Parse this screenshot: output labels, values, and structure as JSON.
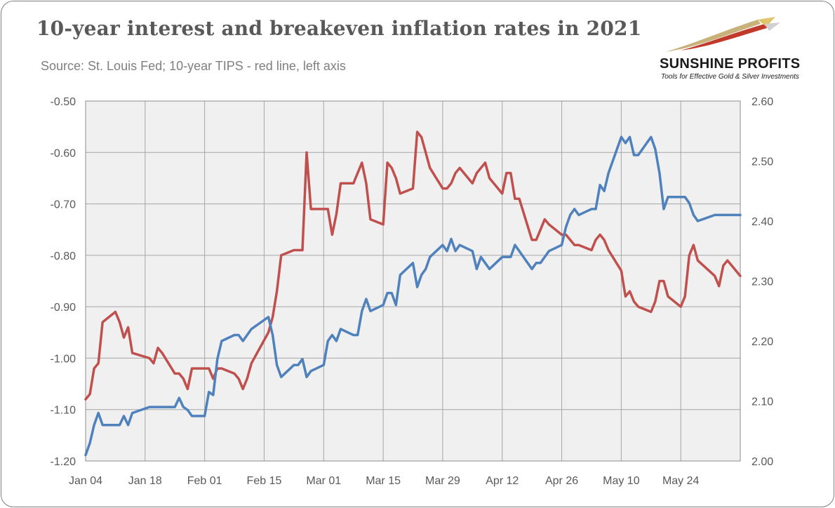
{
  "title": "10-year interest and breakeven inflation rates in 2021",
  "subtitle": "Source: St. Louis Fed; 10-year TIPS - red line, left axis",
  "logo": {
    "name": "SUNSHINE PROFITS",
    "tagline": "Tools for Effective Gold & Silver Investments"
  },
  "colors": {
    "tips": "#c0504d",
    "breakeven": "#4f81bd",
    "grid": "#a6a6a6",
    "plot_bg": "#f0f0f0"
  },
  "chart_data": {
    "type": "line",
    "x_tick_labels": [
      "Jan 04",
      "Jan 18",
      "Feb 01",
      "Feb 15",
      "Mar 01",
      "Mar 15",
      "Mar 29",
      "Apr 12",
      "Apr 26",
      "May 10",
      "May 24"
    ],
    "y_left": {
      "range": [
        -1.2,
        -0.5
      ],
      "ticks": [
        "-0.50",
        "-0.60",
        "-0.70",
        "-0.80",
        "-0.90",
        "-1.00",
        "-1.10",
        "-1.20"
      ]
    },
    "y_right": {
      "range": [
        2.0,
        2.6
      ],
      "ticks": [
        "2.60",
        "2.50",
        "2.40",
        "2.30",
        "2.20",
        "2.10",
        "2.00"
      ]
    },
    "grid": true,
    "series": [
      {
        "axis": "left",
        "color": "#c0504d",
        "points": [
          [
            "2021-01-04",
            -1.08
          ],
          [
            "2021-01-05",
            -1.07
          ],
          [
            "2021-01-06",
            -1.02
          ],
          [
            "2021-01-07",
            -1.01
          ],
          [
            "2021-01-08",
            -0.93
          ],
          [
            "2021-01-11",
            -0.91
          ],
          [
            "2021-01-12",
            -0.93
          ],
          [
            "2021-01-13",
            -0.96
          ],
          [
            "2021-01-14",
            -0.94
          ],
          [
            "2021-01-15",
            -0.99
          ],
          [
            "2021-01-19",
            -1.0
          ],
          [
            "2021-01-20",
            -1.01
          ],
          [
            "2021-01-21",
            -0.98
          ],
          [
            "2021-01-22",
            -0.99
          ],
          [
            "2021-01-25",
            -1.03
          ],
          [
            "2021-01-26",
            -1.03
          ],
          [
            "2021-01-27",
            -1.04
          ],
          [
            "2021-01-28",
            -1.06
          ],
          [
            "2021-01-29",
            -1.02
          ],
          [
            "2021-02-01",
            -1.02
          ],
          [
            "2021-02-02",
            -1.02
          ],
          [
            "2021-02-03",
            -1.04
          ],
          [
            "2021-02-04",
            -1.02
          ],
          [
            "2021-02-05",
            -1.02
          ],
          [
            "2021-02-08",
            -1.03
          ],
          [
            "2021-02-09",
            -1.04
          ],
          [
            "2021-02-10",
            -1.06
          ],
          [
            "2021-02-11",
            -1.04
          ],
          [
            "2021-02-12",
            -1.01
          ],
          [
            "2021-02-16",
            -0.95
          ],
          [
            "2021-02-17",
            -0.92
          ],
          [
            "2021-02-18",
            -0.87
          ],
          [
            "2021-02-19",
            -0.8
          ],
          [
            "2021-02-22",
            -0.79
          ],
          [
            "2021-02-23",
            -0.79
          ],
          [
            "2021-02-24",
            -0.79
          ],
          [
            "2021-02-25",
            -0.6
          ],
          [
            "2021-02-26",
            -0.71
          ],
          [
            "2021-03-01",
            -0.71
          ],
          [
            "2021-03-02",
            -0.71
          ],
          [
            "2021-03-03",
            -0.76
          ],
          [
            "2021-03-04",
            -0.72
          ],
          [
            "2021-03-05",
            -0.66
          ],
          [
            "2021-03-08",
            -0.66
          ],
          [
            "2021-03-09",
            -0.64
          ],
          [
            "2021-03-10",
            -0.62
          ],
          [
            "2021-03-11",
            -0.66
          ],
          [
            "2021-03-12",
            -0.73
          ],
          [
            "2021-03-15",
            -0.74
          ],
          [
            "2021-03-16",
            -0.62
          ],
          [
            "2021-03-17",
            -0.63
          ],
          [
            "2021-03-18",
            -0.65
          ],
          [
            "2021-03-19",
            -0.68
          ],
          [
            "2021-03-22",
            -0.67
          ],
          [
            "2021-03-23",
            -0.56
          ],
          [
            "2021-03-24",
            -0.57
          ],
          [
            "2021-03-25",
            -0.6
          ],
          [
            "2021-03-26",
            -0.63
          ],
          [
            "2021-03-29",
            -0.67
          ],
          [
            "2021-03-30",
            -0.67
          ],
          [
            "2021-03-31",
            -0.66
          ],
          [
            "2021-04-01",
            -0.64
          ],
          [
            "2021-04-02",
            -0.63
          ],
          [
            "2021-04-05",
            -0.66
          ],
          [
            "2021-04-06",
            -0.64
          ],
          [
            "2021-04-07",
            -0.63
          ],
          [
            "2021-04-08",
            -0.62
          ],
          [
            "2021-04-09",
            -0.65
          ],
          [
            "2021-04-12",
            -0.68
          ],
          [
            "2021-04-13",
            -0.64
          ],
          [
            "2021-04-14",
            -0.64
          ],
          [
            "2021-04-15",
            -0.69
          ],
          [
            "2021-04-16",
            -0.69
          ],
          [
            "2021-04-19",
            -0.77
          ],
          [
            "2021-04-20",
            -0.77
          ],
          [
            "2021-04-21",
            -0.75
          ],
          [
            "2021-04-22",
            -0.73
          ],
          [
            "2021-04-23",
            -0.74
          ],
          [
            "2021-04-26",
            -0.76
          ],
          [
            "2021-04-27",
            -0.76
          ],
          [
            "2021-04-28",
            -0.77
          ],
          [
            "2021-04-29",
            -0.78
          ],
          [
            "2021-04-30",
            -0.78
          ],
          [
            "2021-05-03",
            -0.79
          ],
          [
            "2021-05-04",
            -0.77
          ],
          [
            "2021-05-05",
            -0.76
          ],
          [
            "2021-05-06",
            -0.77
          ],
          [
            "2021-05-07",
            -0.79
          ],
          [
            "2021-05-10",
            -0.83
          ],
          [
            "2021-05-11",
            -0.88
          ],
          [
            "2021-05-12",
            -0.87
          ],
          [
            "2021-05-13",
            -0.89
          ],
          [
            "2021-05-14",
            -0.9
          ],
          [
            "2021-05-17",
            -0.91
          ],
          [
            "2021-05-18",
            -0.89
          ],
          [
            "2021-05-19",
            -0.85
          ],
          [
            "2021-05-20",
            -0.85
          ],
          [
            "2021-05-21",
            -0.88
          ],
          [
            "2021-05-24",
            -0.9
          ],
          [
            "2021-05-25",
            -0.88
          ],
          [
            "2021-05-26",
            -0.8
          ],
          [
            "2021-05-27",
            -0.78
          ],
          [
            "2021-05-28",
            -0.81
          ],
          [
            "2021-06-01",
            -0.84
          ],
          [
            "2021-06-02",
            -0.86
          ],
          [
            "2021-06-03",
            -0.82
          ],
          [
            "2021-06-04",
            -0.81
          ],
          [
            "2021-06-07",
            -0.84
          ]
        ]
      },
      {
        "axis": "right",
        "color": "#4f81bd",
        "points": [
          [
            "2021-01-04",
            2.01
          ],
          [
            "2021-01-05",
            2.03
          ],
          [
            "2021-01-06",
            2.06
          ],
          [
            "2021-01-07",
            2.08
          ],
          [
            "2021-01-08",
            2.06
          ],
          [
            "2021-01-11",
            2.06
          ],
          [
            "2021-01-12",
            2.06
          ],
          [
            "2021-01-13",
            2.075
          ],
          [
            "2021-01-14",
            2.06
          ],
          [
            "2021-01-15",
            2.08
          ],
          [
            "2021-01-19",
            2.09
          ],
          [
            "2021-01-20",
            2.09
          ],
          [
            "2021-01-21",
            2.09
          ],
          [
            "2021-01-22",
            2.09
          ],
          [
            "2021-01-25",
            2.09
          ],
          [
            "2021-01-26",
            2.105
          ],
          [
            "2021-01-27",
            2.09
          ],
          [
            "2021-01-28",
            2.085
          ],
          [
            "2021-01-29",
            2.075
          ],
          [
            "2021-02-01",
            2.075
          ],
          [
            "2021-02-02",
            2.115
          ],
          [
            "2021-02-03",
            2.11
          ],
          [
            "2021-02-04",
            2.17
          ],
          [
            "2021-02-05",
            2.2
          ],
          [
            "2021-02-08",
            2.21
          ],
          [
            "2021-02-09",
            2.21
          ],
          [
            "2021-02-10",
            2.2
          ],
          [
            "2021-02-11",
            2.21
          ],
          [
            "2021-02-12",
            2.22
          ],
          [
            "2021-02-16",
            2.24
          ],
          [
            "2021-02-17",
            2.21
          ],
          [
            "2021-02-18",
            2.16
          ],
          [
            "2021-02-19",
            2.14
          ],
          [
            "2021-02-22",
            2.16
          ],
          [
            "2021-02-23",
            2.16
          ],
          [
            "2021-02-24",
            2.17
          ],
          [
            "2021-02-25",
            2.14
          ],
          [
            "2021-02-26",
            2.15
          ],
          [
            "2021-03-01",
            2.16
          ],
          [
            "2021-03-02",
            2.2
          ],
          [
            "2021-03-03",
            2.21
          ],
          [
            "2021-03-04",
            2.2
          ],
          [
            "2021-03-05",
            2.22
          ],
          [
            "2021-03-08",
            2.21
          ],
          [
            "2021-03-09",
            2.21
          ],
          [
            "2021-03-10",
            2.25
          ],
          [
            "2021-03-11",
            2.27
          ],
          [
            "2021-03-12",
            2.25
          ],
          [
            "2021-03-15",
            2.26
          ],
          [
            "2021-03-16",
            2.28
          ],
          [
            "2021-03-17",
            2.28
          ],
          [
            "2021-03-18",
            2.26
          ],
          [
            "2021-03-19",
            2.31
          ],
          [
            "2021-03-22",
            2.33
          ],
          [
            "2021-03-23",
            2.29
          ],
          [
            "2021-03-24",
            2.31
          ],
          [
            "2021-03-25",
            2.32
          ],
          [
            "2021-03-26",
            2.34
          ],
          [
            "2021-03-29",
            2.36
          ],
          [
            "2021-03-30",
            2.35
          ],
          [
            "2021-03-31",
            2.37
          ],
          [
            "2021-04-01",
            2.35
          ],
          [
            "2021-04-02",
            2.36
          ],
          [
            "2021-04-05",
            2.35
          ],
          [
            "2021-04-06",
            2.32
          ],
          [
            "2021-04-07",
            2.34
          ],
          [
            "2021-04-08",
            2.33
          ],
          [
            "2021-04-09",
            2.32
          ],
          [
            "2021-04-12",
            2.34
          ],
          [
            "2021-04-13",
            2.34
          ],
          [
            "2021-04-14",
            2.34
          ],
          [
            "2021-04-15",
            2.36
          ],
          [
            "2021-04-16",
            2.35
          ],
          [
            "2021-04-19",
            2.32
          ],
          [
            "2021-04-20",
            2.33
          ],
          [
            "2021-04-21",
            2.33
          ],
          [
            "2021-04-22",
            2.34
          ],
          [
            "2021-04-23",
            2.35
          ],
          [
            "2021-04-26",
            2.36
          ],
          [
            "2021-04-27",
            2.39
          ],
          [
            "2021-04-28",
            2.41
          ],
          [
            "2021-04-29",
            2.42
          ],
          [
            "2021-04-30",
            2.41
          ],
          [
            "2021-05-03",
            2.42
          ],
          [
            "2021-05-04",
            2.42
          ],
          [
            "2021-05-05",
            2.46
          ],
          [
            "2021-05-06",
            2.45
          ],
          [
            "2021-05-07",
            2.48
          ],
          [
            "2021-05-10",
            2.54
          ],
          [
            "2021-05-11",
            2.53
          ],
          [
            "2021-05-12",
            2.54
          ],
          [
            "2021-05-13",
            2.51
          ],
          [
            "2021-05-14",
            2.51
          ],
          [
            "2021-05-17",
            2.54
          ],
          [
            "2021-05-18",
            2.52
          ],
          [
            "2021-05-19",
            2.48
          ],
          [
            "2021-05-20",
            2.42
          ],
          [
            "2021-05-21",
            2.44
          ],
          [
            "2021-05-24",
            2.44
          ],
          [
            "2021-05-25",
            2.44
          ],
          [
            "2021-05-26",
            2.43
          ],
          [
            "2021-05-27",
            2.41
          ],
          [
            "2021-05-28",
            2.4
          ],
          [
            "2021-06-01",
            2.41
          ],
          [
            "2021-06-02",
            2.41
          ],
          [
            "2021-06-03",
            2.41
          ],
          [
            "2021-06-04",
            2.41
          ],
          [
            "2021-06-07",
            2.41
          ]
        ]
      }
    ]
  }
}
